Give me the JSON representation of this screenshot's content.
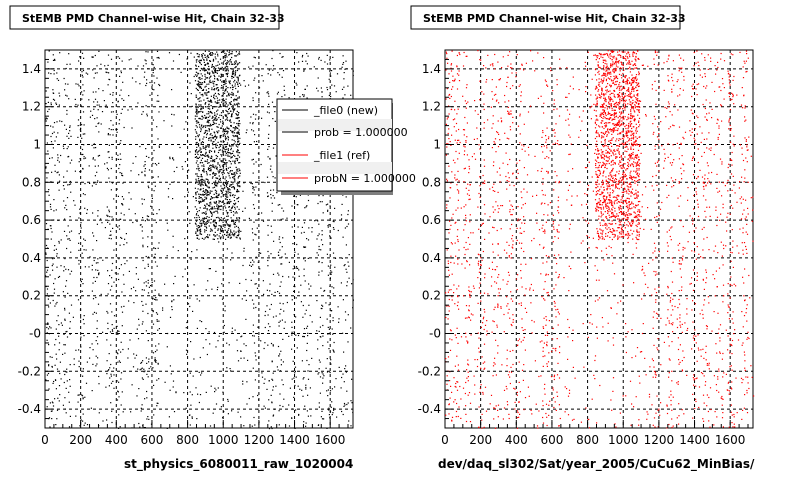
{
  "chart_data": [
    {
      "type": "scatter",
      "title": "StEMB PMD Channel-wise Hit, Chain 32-33",
      "xlabel": "st_physics_6080011_raw_1020004",
      "ylabel": "",
      "xlim": [
        0,
        1728
      ],
      "ylim": [
        -0.5,
        1.5
      ],
      "x_ticks": [
        "0",
        "200",
        "400",
        "600",
        "800",
        "1000",
        "1200",
        "1400",
        "1600"
      ],
      "y_ticks": [
        "-0.4",
        "-0.2",
        "-0",
        "0.2",
        "0.4",
        "0.6",
        "0.8",
        "1",
        "1.2",
        "1.4"
      ],
      "grid": true,
      "color": "#000000",
      "legend": {
        "placement": "top-right",
        "entries": [
          {
            "label": "_file0 (new)",
            "color": "#000000"
          },
          {
            "label": "prob = 1.000000",
            "color": "#000000"
          },
          {
            "label": "_file1 (ref)",
            "color": "#ff0000"
          },
          {
            "label": "probN = 1.000000",
            "color": "#ff0000"
          }
        ]
      },
      "dense_band": {
        "x": [
          840,
          1090
        ],
        "y": [
          0.5,
          1.5
        ]
      }
    },
    {
      "type": "scatter",
      "title": "StEMB PMD Channel-wise Hit, Chain 32-33",
      "xlabel": "dev/daq_sl302/Sat/year_2005/CuCu62_MinBias/",
      "ylabel": "",
      "xlim": [
        0,
        1728
      ],
      "ylim": [
        -0.5,
        1.5
      ],
      "x_ticks": [
        "0",
        "200",
        "400",
        "600",
        "800",
        "1000",
        "1200",
        "1400",
        "1600"
      ],
      "y_ticks": [
        "-0.4",
        "-0.2",
        "-0",
        "0.2",
        "0.4",
        "0.6",
        "0.8",
        "1",
        "1.2",
        "1.4"
      ],
      "grid": true,
      "color": "#ff0000",
      "dense_band": {
        "x": [
          840,
          1090
        ],
        "y": [
          0.5,
          1.5
        ]
      }
    }
  ]
}
